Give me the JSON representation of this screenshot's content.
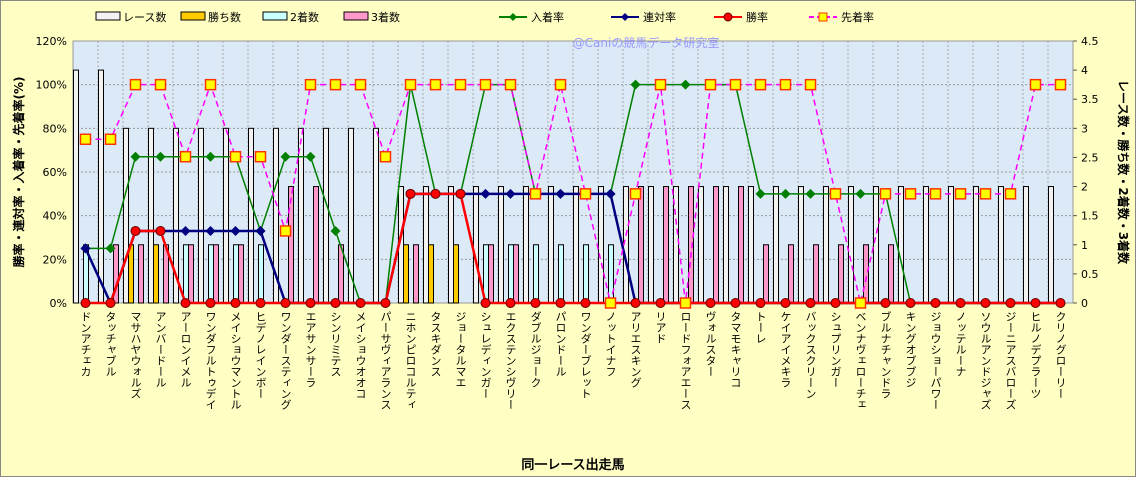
{
  "chart_data": {
    "type": "bar+line",
    "watermark": "@Caniの競馬データ研究室",
    "xlabel": "同一レース出走馬",
    "ylabel_left": "勝率・連対率・入着率・先着率(%)",
    "ylabel_right": "レース数・勝ち数・2着数・3着数",
    "ylim_left": [
      0,
      120
    ],
    "ylim_right": [
      0,
      4.5
    ],
    "left_ticks": [
      "0%",
      "20%",
      "40%",
      "60%",
      "80%",
      "100%",
      "120%"
    ],
    "right_ticks": [
      "0",
      "0.5",
      "1",
      "1.5",
      "2",
      "2.5",
      "3",
      "3.5",
      "4",
      "4.5"
    ],
    "legend_position": "top",
    "legend": [
      "レース数",
      "勝ち数",
      "2着数",
      "3着数",
      "入着率",
      "連対率",
      "勝率",
      "先着率"
    ],
    "categories": [
      "ドンアチェカ",
      "タッチャブル",
      "マサハヤウォルズ",
      "アンバードール",
      "アーロンイメル",
      "ワンダフルトゥデイ",
      "メイショウマントル",
      "ヒデノレインボー",
      "ワンダースティング",
      "エアサンサーラ",
      "シンリミテス",
      "メイショウオオコ",
      "パーサヴィアランス",
      "ニホンピロコルティ",
      "タスキダンス",
      "ジョータルマエ",
      "シュレディンガー",
      "エクステンシヴリー",
      "ダブルジョーク",
      "パロンドール",
      "ワンダーブレット",
      "ノットイナフ",
      "アリエスキング",
      "リアド",
      "ロードフォアエース",
      "ヴォルスター",
      "タマモキャリコ",
      "トーレ",
      "ケイアイメキラ",
      "バックスクリーン",
      "シュプリンガー",
      "ベンナヴェローチェ",
      "ブルナチャンドラ",
      "キングオブブジ",
      "ジョウショーパワー",
      "ノッテルーナ",
      "ソウルアンドジャズ",
      "ジーニアスバローズ",
      "ヒルノデプラーツ",
      "クリノグローリー"
    ],
    "bar_series": [
      {
        "name": "レース数",
        "axis": "right",
        "color": "#F2F2F2",
        "values": [
          4,
          4,
          3,
          3,
          3,
          3,
          3,
          3,
          3,
          3,
          3,
          3,
          3,
          2,
          2,
          2,
          2,
          2,
          2,
          2,
          2,
          2,
          2,
          2,
          2,
          2,
          2,
          2,
          2,
          2,
          2,
          2,
          2,
          2,
          2,
          2,
          2,
          2,
          2,
          2
        ]
      },
      {
        "name": "勝ち数",
        "axis": "right",
        "color": "#FFCC00",
        "values": [
          0,
          0,
          1,
          1,
          0,
          0,
          0,
          0,
          0,
          0,
          0,
          0,
          0,
          1,
          1,
          1,
          0,
          0,
          0,
          0,
          0,
          0,
          0,
          0,
          0,
          0,
          0,
          0,
          0,
          0,
          0,
          0,
          0,
          0,
          0,
          0,
          0,
          0,
          0,
          0
        ]
      },
      {
        "name": "2着数",
        "axis": "right",
        "color": "#CCFFFF",
        "values": [
          1,
          0,
          0,
          0,
          1,
          1,
          1,
          1,
          0,
          0,
          0,
          0,
          0,
          0,
          0,
          0,
          1,
          1,
          1,
          1,
          1,
          1,
          0,
          0,
          0,
          0,
          0,
          0,
          0,
          0,
          0,
          0,
          0,
          0,
          0,
          0,
          0,
          0,
          0,
          0
        ]
      },
      {
        "name": "3着数",
        "axis": "right",
        "color": "#FF99CC",
        "values": [
          0,
          1,
          1,
          1,
          1,
          1,
          1,
          0,
          2,
          2,
          1,
          0,
          0,
          1,
          0,
          0,
          1,
          1,
          0,
          0,
          0,
          0,
          2,
          2,
          2,
          2,
          2,
          1,
          1,
          1,
          1,
          1,
          1,
          0,
          0,
          0,
          0,
          0,
          0,
          0
        ]
      }
    ],
    "line_series": [
      {
        "name": "入着率",
        "axis": "left",
        "color": "#008000",
        "marker": "diamond",
        "values": [
          25,
          25,
          67,
          67,
          67,
          67,
          67,
          33,
          67,
          67,
          33,
          0,
          0,
          100,
          50,
          50,
          100,
          100,
          50,
          50,
          50,
          50,
          100,
          100,
          100,
          100,
          100,
          50,
          50,
          50,
          50,
          50,
          50,
          0,
          0,
          0,
          0,
          0,
          0,
          0
        ]
      },
      {
        "name": "連対率",
        "axis": "left",
        "color": "#000080",
        "marker": "diamond",
        "values": [
          25,
          0,
          33,
          33,
          33,
          33,
          33,
          33,
          0,
          0,
          0,
          0,
          0,
          50,
          50,
          50,
          50,
          50,
          50,
          50,
          50,
          50,
          0,
          0,
          0,
          0,
          0,
          0,
          0,
          0,
          0,
          0,
          0,
          0,
          0,
          0,
          0,
          0,
          0,
          0
        ]
      },
      {
        "name": "勝率",
        "axis": "left",
        "color": "#FF0000",
        "marker": "circle",
        "values": [
          0,
          0,
          33,
          33,
          0,
          0,
          0,
          0,
          0,
          0,
          0,
          0,
          0,
          50,
          50,
          50,
          0,
          0,
          0,
          0,
          0,
          0,
          0,
          0,
          0,
          0,
          0,
          0,
          0,
          0,
          0,
          0,
          0,
          0,
          0,
          0,
          0,
          0,
          0,
          0
        ]
      },
      {
        "name": "先着率",
        "axis": "left",
        "color": "#FF00FF",
        "marker": "square",
        "dashed": true,
        "values": [
          75,
          75,
          100,
          100,
          67,
          100,
          67,
          67,
          33,
          100,
          100,
          100,
          67,
          100,
          100,
          100,
          100,
          100,
          50,
          100,
          50,
          0,
          50,
          100,
          0,
          100,
          100,
          100,
          100,
          100,
          50,
          0,
          50,
          50,
          50,
          50,
          50,
          50,
          100,
          100
        ]
      }
    ]
  }
}
